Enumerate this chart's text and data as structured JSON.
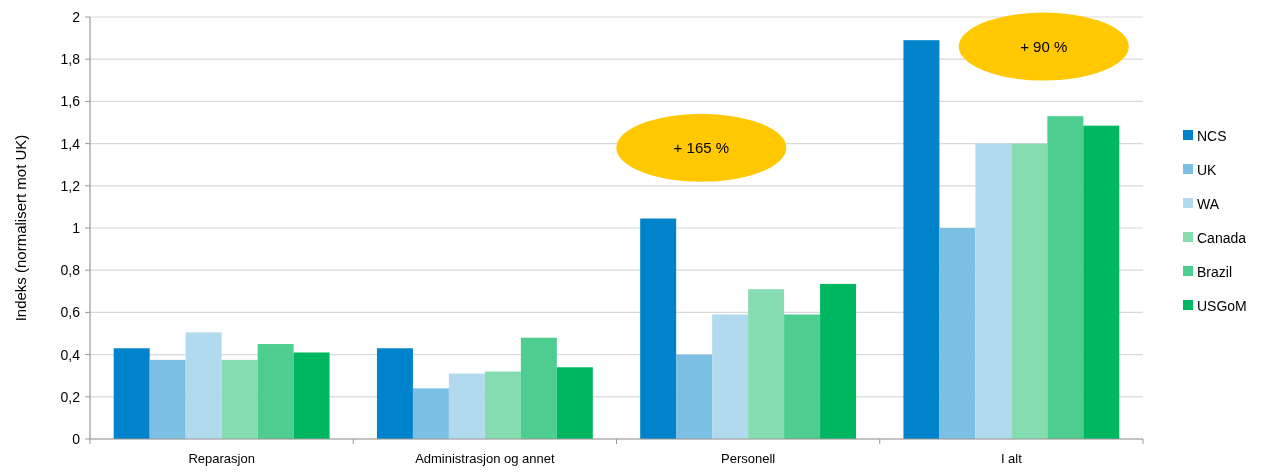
{
  "chart_data": {
    "type": "bar",
    "ylabel": "Indeks (normalisert mot UK)",
    "categories": [
      "Reparasjon",
      "Administrasjon og annet",
      "Personell",
      "I alt"
    ],
    "series": [
      {
        "name": "NCS",
        "color": "#0083ca",
        "values": [
          0.43,
          0.43,
          1.045,
          1.89
        ]
      },
      {
        "name": "UK",
        "color": "#7bbfe3",
        "values": [
          0.375,
          0.24,
          0.4,
          1.0
        ]
      },
      {
        "name": "WA",
        "color": "#b2daee",
        "values": [
          0.505,
          0.31,
          0.59,
          1.4
        ]
      },
      {
        "name": "Canada",
        "color": "#85dcb0",
        "values": [
          0.375,
          0.32,
          0.71,
          1.4
        ]
      },
      {
        "name": "Brazil",
        "color": "#4dcd8f",
        "values": [
          0.45,
          0.48,
          0.59,
          1.53
        ]
      },
      {
        "name": "USGoM",
        "color": "#00b761",
        "values": [
          0.41,
          0.34,
          0.735,
          1.485
        ]
      }
    ],
    "ylim": [
      0,
      2
    ],
    "yticks": [
      0,
      {
        "value": 0.2,
        "label": "0,2"
      },
      {
        "value": 0.4,
        "label": "0,4"
      },
      {
        "value": 0.6,
        "label": "0,6"
      },
      {
        "value": 0.8,
        "label": "0,8"
      },
      1,
      {
        "value": 1.2,
        "label": "1,2"
      },
      {
        "value": 1.4,
        "label": "1,4"
      },
      {
        "value": 1.6,
        "label": "1,6"
      },
      {
        "value": 1.8,
        "label": "1,8"
      },
      2
    ],
    "grid": "y",
    "legend": "right",
    "annotations": [
      "+ 165 %",
      "+ 90 %"
    ]
  }
}
